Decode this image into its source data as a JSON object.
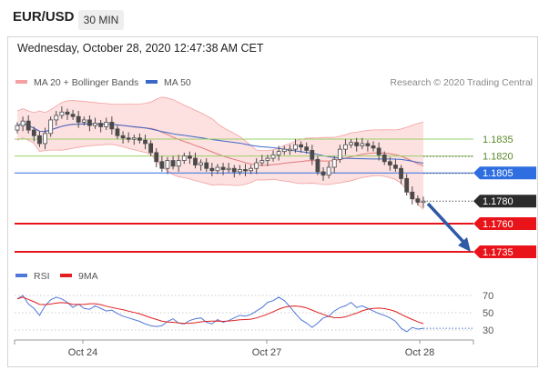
{
  "header": {
    "symbol": "EUR/USD",
    "timeframe": "30 MIN"
  },
  "datetime": "Wednesday, October 28, 2020 12:47:38 AM CET",
  "legend": {
    "bb_label": "MA 20 + Bollinger Bands",
    "ma50_label": "MA 50",
    "credit": "Research © 2020 Trading Central",
    "rsi_label": "RSI",
    "rsi_ma_label": "9MA"
  },
  "colors": {
    "candle": "#4a4a4a",
    "bb_fill": "#fde0e0",
    "bb_line": "#f3a0a0",
    "ma20": "#e07a7a",
    "ma50": "#3b68c8",
    "green": "#9ad068",
    "blue": "#2f6ee0",
    "red": "#e8141a",
    "price_tag": "#2b2b2b",
    "rsi": "#4f78d8",
    "rsi_ma": "#e02020",
    "arrow": "#2e5aa8"
  },
  "chart_data": [
    {
      "type": "candlestick",
      "title": "",
      "x_ticks": [
        "Oct 24",
        "Oct 27",
        "Oct 28"
      ],
      "ylim": [
        1.17215,
        1.1882
      ],
      "last_price": 1.178,
      "levels": [
        {
          "value": 1.1835,
          "label": "1.1835",
          "kind": "resistance-green"
        },
        {
          "value": 1.182,
          "label": "1.1820",
          "kind": "resistance-green"
        },
        {
          "value": 1.1805,
          "label": "1.1805",
          "kind": "pivot-blue"
        },
        {
          "value": 1.178,
          "label": "1.1780",
          "kind": "last-price"
        },
        {
          "value": 1.176,
          "label": "1.1760",
          "kind": "support-red"
        },
        {
          "value": 1.1735,
          "label": "1.1735",
          "kind": "support-red"
        }
      ],
      "close_points": [
        1.1847,
        1.1851,
        1.1843,
        1.1838,
        1.1831,
        1.184,
        1.1852,
        1.1856,
        1.1859,
        1.1857,
        1.1855,
        1.185,
        1.1852,
        1.1847,
        1.1849,
        1.1846,
        1.185,
        1.1844,
        1.1838,
        1.1836,
        1.1835,
        1.1836,
        1.1834,
        1.1831,
        1.1823,
        1.1815,
        1.1809,
        1.1816,
        1.1811,
        1.1816,
        1.182,
        1.1818,
        1.1812,
        1.1814,
        1.1809,
        1.1807,
        1.181,
        1.1808,
        1.1809,
        1.1806,
        1.1808,
        1.1807,
        1.1809,
        1.1814,
        1.1816,
        1.1818,
        1.1821,
        1.1824,
        1.1826,
        1.1826,
        1.183,
        1.1828,
        1.1825,
        1.1817,
        1.1806,
        1.1803,
        1.181,
        1.1817,
        1.1826,
        1.183,
        1.1832,
        1.1829,
        1.1831,
        1.1829,
        1.1827,
        1.1821,
        1.1815,
        1.1812,
        1.1809,
        1.18,
        1.1788,
        1.1782,
        1.1779,
        1.178
      ]
    },
    {
      "type": "line",
      "title": "",
      "series": [
        {
          "name": "RSI",
          "values": [
            66,
            70,
            60,
            55,
            47,
            58,
            65,
            68,
            66,
            62,
            56,
            60,
            55,
            54,
            58,
            55,
            52,
            53,
            49,
            46,
            44,
            42,
            40,
            37,
            35,
            34,
            35,
            40,
            43,
            38,
            37,
            41,
            43,
            44,
            39,
            37,
            42,
            39,
            41,
            44,
            47,
            46,
            48,
            52,
            56,
            62,
            64,
            68,
            64,
            57,
            49,
            42,
            38,
            33,
            38,
            44,
            46,
            52,
            56,
            58,
            62,
            56,
            58,
            55,
            52,
            49,
            47,
            44,
            40,
            32,
            28,
            33,
            31,
            32
          ]
        },
        {
          "name": "9MA"
        }
      ],
      "y_ticks": [
        30,
        50,
        70
      ],
      "ylim": [
        20,
        80
      ]
    }
  ]
}
